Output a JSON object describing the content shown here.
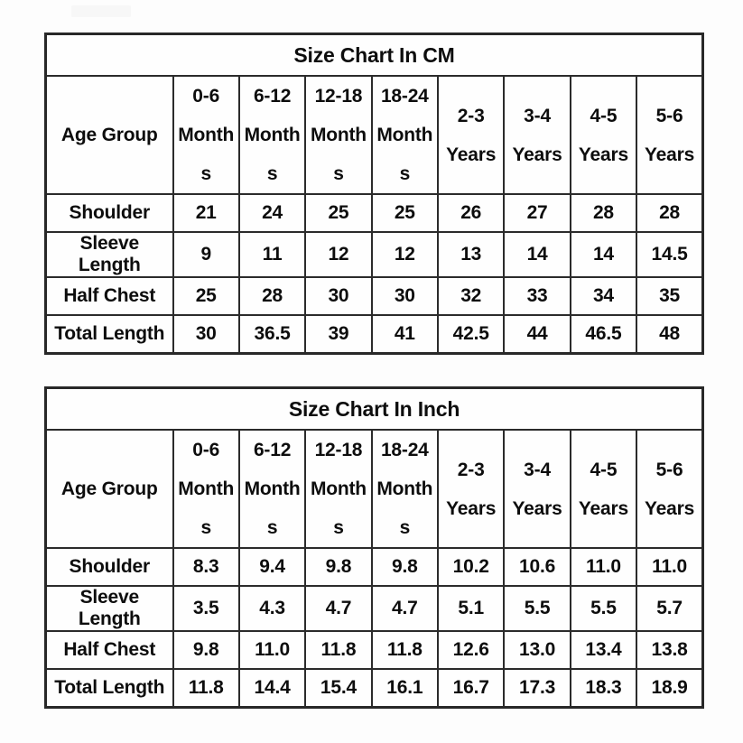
{
  "colors": {
    "background": "#fdfdfd",
    "border": "#2b2b2b",
    "text": "#0d0d0d"
  },
  "chart_data": [
    {
      "type": "table",
      "title": "Size Chart In CM",
      "unit": "cm",
      "columns": [
        "Age Group",
        "0-6 Months",
        "6-12 Months",
        "12-18 Months",
        "18-24 Months",
        "2-3 Years",
        "3-4 Years",
        "4-5 Years",
        "5-6 Years"
      ],
      "header_display": [
        "Age Group",
        "0-6\nMonth\ns",
        "6-12\nMonth\ns",
        "12-18\nMonth\ns",
        "18-24\nMonth\ns",
        "2-3\nYears",
        "3-4\nYears",
        "4-5\nYears",
        "5-6\nYears"
      ],
      "rows": [
        {
          "label": "Shoulder",
          "values": [
            "21",
            "24",
            "25",
            "25",
            "26",
            "27",
            "28",
            "28"
          ]
        },
        {
          "label": "Sleeve Length",
          "values": [
            "9",
            "11",
            "12",
            "12",
            "13",
            "14",
            "14",
            "14.5"
          ]
        },
        {
          "label": "Half Chest",
          "values": [
            "25",
            "28",
            "30",
            "30",
            "32",
            "33",
            "34",
            "35"
          ]
        },
        {
          "label": "Total Length",
          "values": [
            "30",
            "36.5",
            "39",
            "41",
            "42.5",
            "44",
            "46.5",
            "48"
          ]
        }
      ]
    },
    {
      "type": "table",
      "title": "Size Chart In Inch",
      "unit": "inch",
      "columns": [
        "Age Group",
        "0-6 Months",
        "6-12 Months",
        "12-18 Months",
        "18-24 Months",
        "2-3 Years",
        "3-4 Years",
        "4-5 Years",
        "5-6 Years"
      ],
      "header_display": [
        "Age Group",
        "0-6\nMonth\ns",
        "6-12\nMonth\ns",
        "12-18\nMonth\ns",
        "18-24\nMonth\ns",
        "2-3\nYears",
        "3-4\nYears",
        "4-5\nYears",
        "5-6\nYears"
      ],
      "rows": [
        {
          "label": "Shoulder",
          "values": [
            "8.3",
            "9.4",
            "9.8",
            "9.8",
            "10.2",
            "10.6",
            "11.0",
            "11.0"
          ]
        },
        {
          "label": "Sleeve Length",
          "values": [
            "3.5",
            "4.3",
            "4.7",
            "4.7",
            "5.1",
            "5.5",
            "5.5",
            "5.7"
          ]
        },
        {
          "label": "Half Chest",
          "values": [
            "9.8",
            "11.0",
            "11.8",
            "11.8",
            "12.6",
            "13.0",
            "13.4",
            "13.8"
          ]
        },
        {
          "label": "Total Length",
          "values": [
            "11.8",
            "14.4",
            "15.4",
            "16.1",
            "16.7",
            "17.3",
            "18.3",
            "18.9"
          ]
        }
      ]
    }
  ]
}
